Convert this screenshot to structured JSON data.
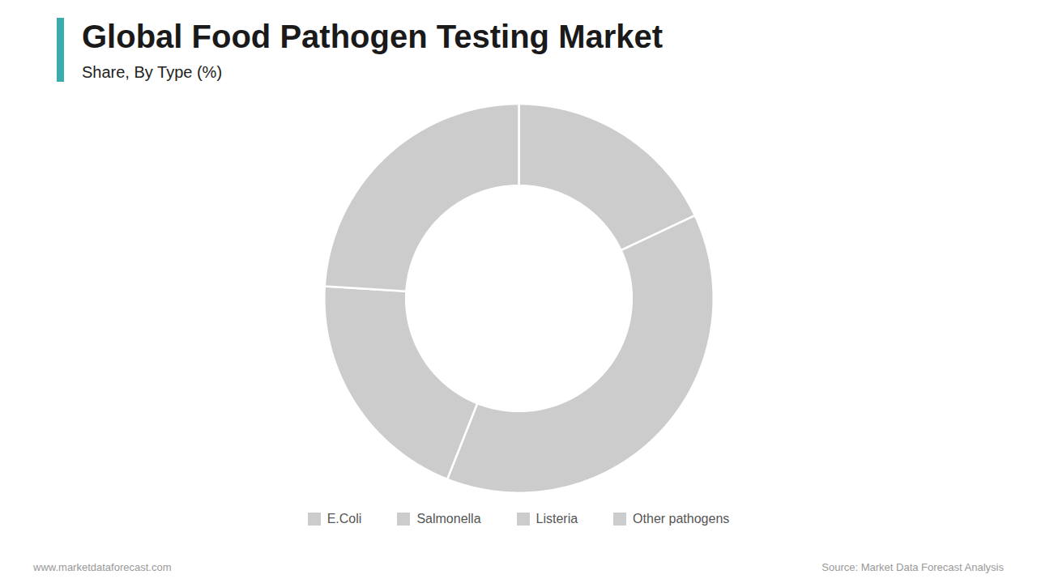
{
  "chart_data": {
    "type": "donut",
    "title": "Global Food Pathogen Testing Market",
    "subtitle": "Share, By Type (%)",
    "categories": [
      "E.Coli",
      "Salmonella",
      "Listeria",
      "Other pathogens"
    ],
    "values": [
      18,
      38,
      20,
      24
    ],
    "color": "#cccccc",
    "legend": "bottom",
    "annotations": [
      "www.marketdataforecast.com",
      "Source: Market Data Forecast Analysis"
    ]
  }
}
